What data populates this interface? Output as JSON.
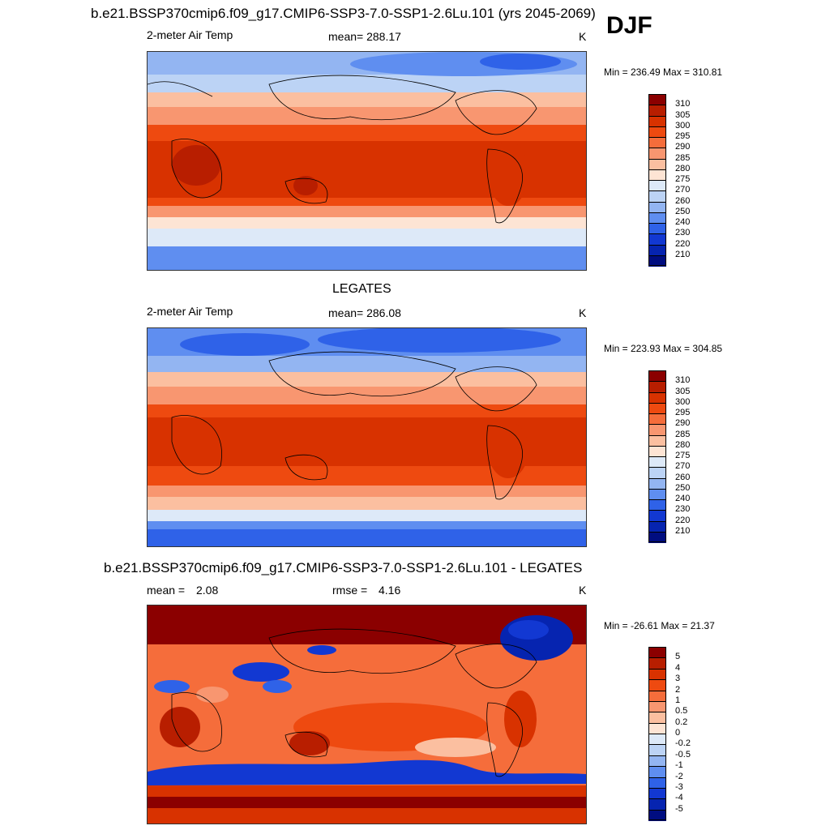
{
  "header": {
    "title": "b.e21.BSSP370cmip6.f09_g17.CMIP6-SSP3-7.0-SSP1-2.6Lu.101 (yrs 2045-2069)",
    "season": "DJF"
  },
  "panel1": {
    "field": "2-meter Air Temp",
    "stat": "mean= 288.17",
    "units": "K",
    "minmax": "Min = 236.49 Max = 310.81"
  },
  "panel2": {
    "title": "LEGATES",
    "field": "2-meter Air Temp",
    "stat": "mean= 286.08",
    "units": "K",
    "minmax": "Min = 223.93 Max = 304.85"
  },
  "panel3": {
    "title": "b.e21.BSSP370cmip6.f09_g17.CMIP6-SSP3-7.0-SSP1-2.6Lu.101 - LEGATES",
    "mean_label": "mean =",
    "mean_value": "2.08",
    "rmse_label": "rmse =",
    "rmse_value": "4.16",
    "units": "K",
    "minmax": "Min = -26.61 Max =  21.37"
  },
  "colorbar_abs": {
    "labels": [
      "310",
      "305",
      "300",
      "295",
      "290",
      "285",
      "280",
      "275",
      "270",
      "260",
      "250",
      "240",
      "230",
      "220",
      "210"
    ],
    "colors": [
      "#8b0000",
      "#b81e00",
      "#d83200",
      "#ee4a10",
      "#f56d3b",
      "#f89670",
      "#fbbfa0",
      "#fde4d4",
      "#dde9f8",
      "#bcd3f5",
      "#93b5f2",
      "#5f8ef0",
      "#2f62e8",
      "#1238d2",
      "#0624b0",
      "#000d80"
    ]
  },
  "colorbar_diff": {
    "labels": [
      "5",
      "4",
      "3",
      "2",
      "1",
      "0.5",
      "0.2",
      "0",
      "-0.2",
      "-0.5",
      "-1",
      "-2",
      "-3",
      "-4",
      "-5"
    ],
    "colors": [
      "#8b0000",
      "#b81e00",
      "#d83200",
      "#ee4a10",
      "#f56d3b",
      "#f89670",
      "#fbbfa0",
      "#fde4d4",
      "#dde9f8",
      "#bcd3f5",
      "#93b5f2",
      "#5f8ef0",
      "#2f62e8",
      "#1238d2",
      "#0624b0",
      "#000d80"
    ]
  }
}
